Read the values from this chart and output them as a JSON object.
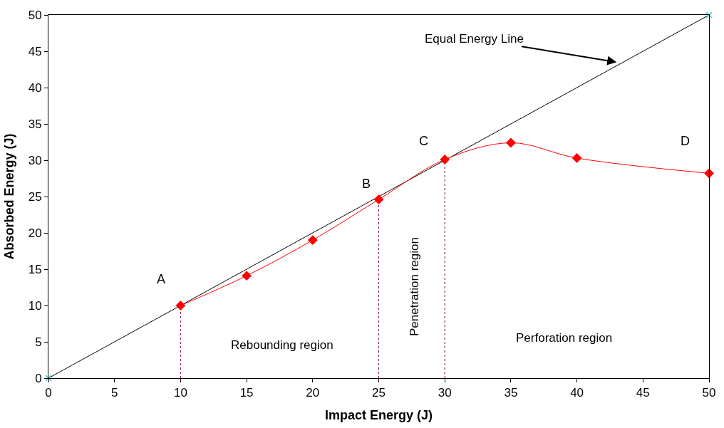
{
  "chart_data": {
    "type": "line",
    "xlabel": "Impact Energy (J)",
    "ylabel": "Absorbed Energy (J)",
    "xlim": [
      0,
      50
    ],
    "xticks": [
      0,
      5,
      10,
      15,
      20,
      25,
      30,
      35,
      40,
      45,
      50
    ],
    "ylim": [
      0,
      50
    ],
    "yticks": [
      0,
      5,
      10,
      15,
      20,
      25,
      30,
      35,
      40,
      45,
      50
    ],
    "series": [
      {
        "x": [
          0,
          50
        ],
        "values": [
          0,
          50
        ],
        "color": "#000000",
        "marker": "none",
        "line_style": "solid"
      },
      {
        "type": "scatter",
        "x": [
          0,
          50
        ],
        "values": [
          0,
          50
        ],
        "color": "#33cccc",
        "marker": "cross"
      },
      {
        "x": [
          10,
          10
        ],
        "values": [
          0,
          10
        ],
        "color": "#800060",
        "marker": "none",
        "line_style": "dotted"
      },
      {
        "x": [
          25,
          25
        ],
        "values": [
          0,
          24.6
        ],
        "color": "#800060",
        "marker": "none",
        "line_style": "dotted"
      },
      {
        "x": [
          30,
          30
        ],
        "values": [
          0,
          30.1
        ],
        "color": "#800060",
        "marker": "none",
        "line_style": "dotted"
      },
      {
        "x": [
          10,
          15,
          20,
          25,
          30,
          35,
          40,
          50
        ],
        "values": [
          10,
          14.1,
          19,
          24.6,
          30.1,
          32.4,
          30.3,
          28.2
        ],
        "color": "#ff0000",
        "marker": "diamond",
        "line_style": "solid"
      }
    ],
    "annotations": [
      {
        "text": "Equal Energy Line",
        "x": 43,
        "y": 43.5
      },
      "A",
      {
        "text": "B",
        "x": 25,
        "y": 24.6
      },
      "C",
      "D",
      "Rebounding region",
      "Penetration region",
      "Perforation region"
    ]
  }
}
